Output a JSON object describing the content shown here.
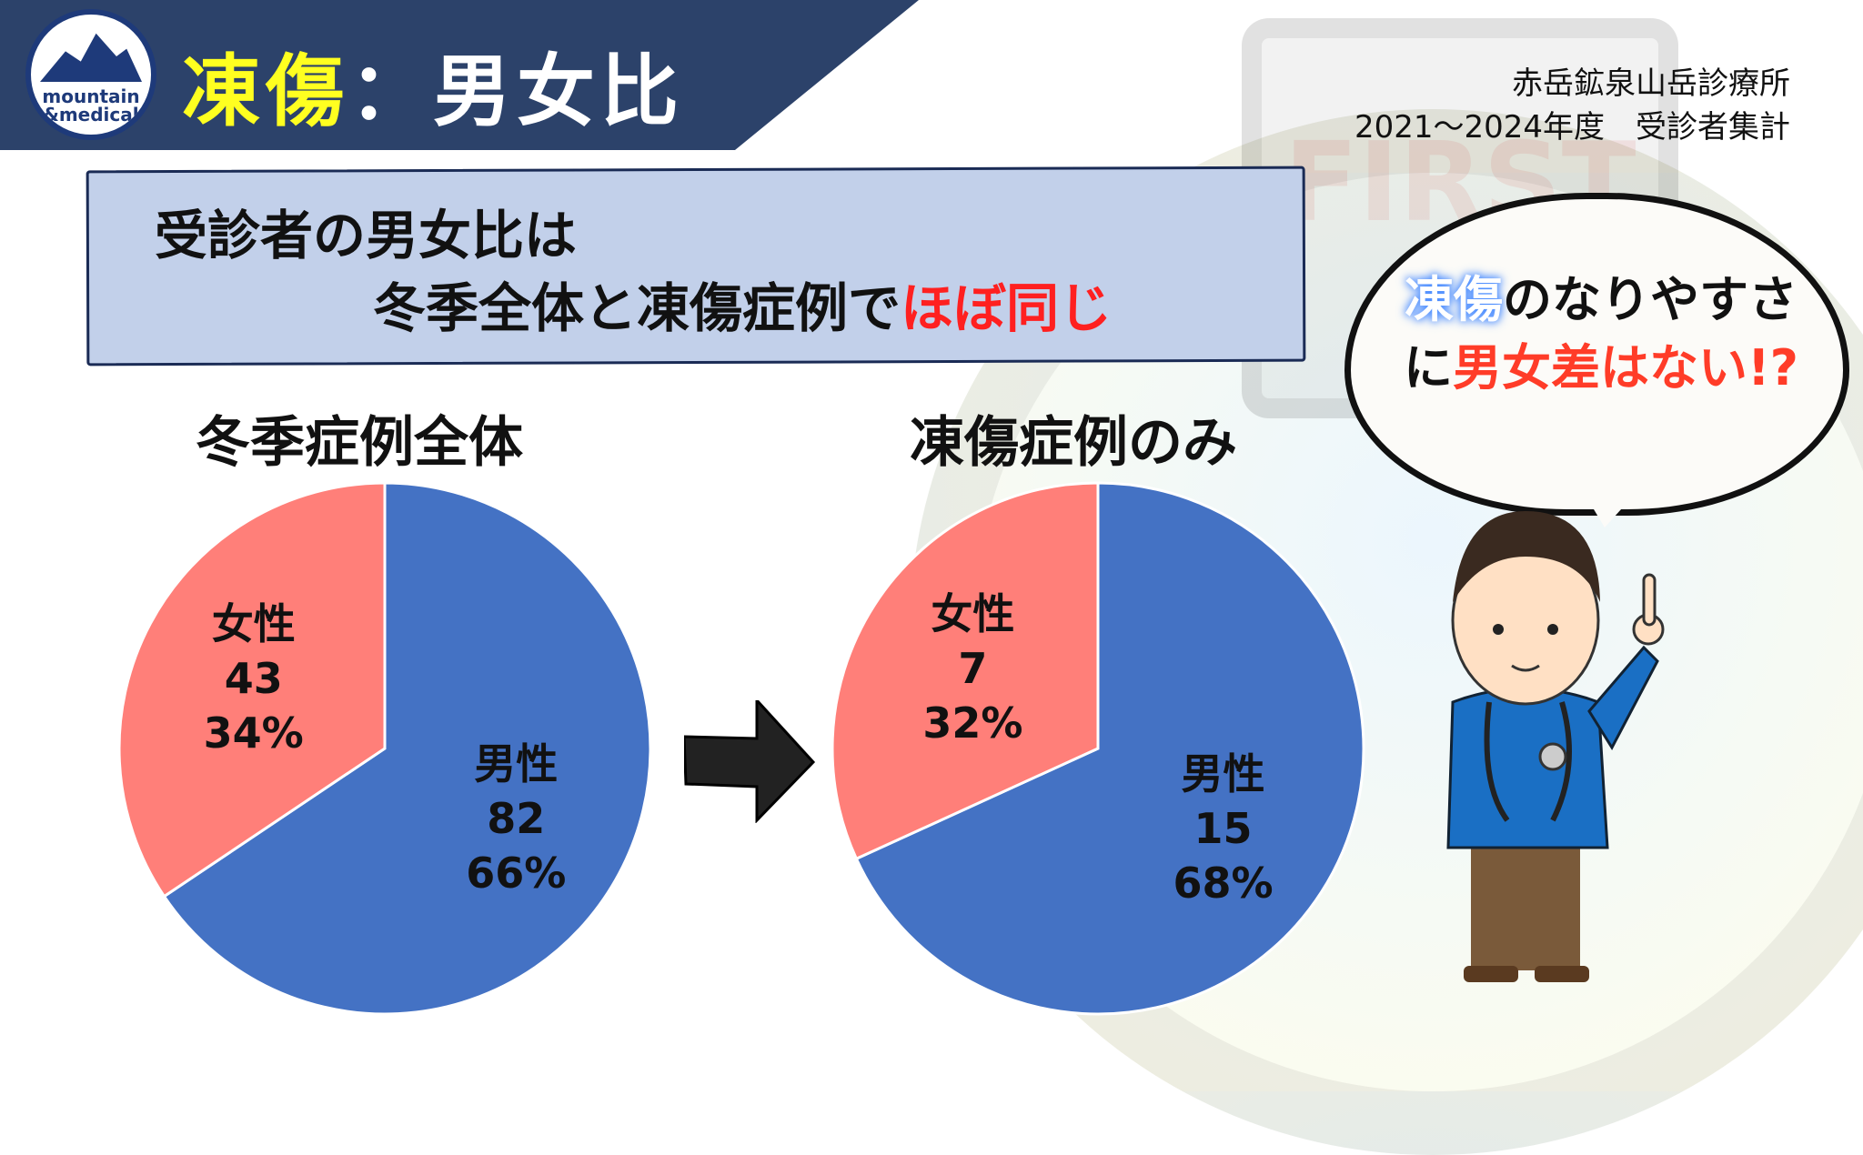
{
  "header": {
    "logo_text": [
      "mountain",
      "&medical"
    ],
    "title_highlight": "凍傷",
    "title_rest": "：男女比"
  },
  "info": {
    "line1": "赤岳鉱泉山岳診療所",
    "line2": "2021～2024年度　受診者集計"
  },
  "watermark": "FIRST",
  "summary": {
    "line1": "受診者の男女比は",
    "line2_prefix": "冬季全体と凍傷症例で",
    "line2_emphasis": "ほぼ同じ"
  },
  "bubble": {
    "highlight": "凍傷",
    "line1_rest": "のなりやすさ",
    "line2_prefix": "に",
    "line2_emphasis": "男女差はない!?"
  },
  "colors": {
    "male": "#4472C4",
    "female": "#FF7F79",
    "header": "#2C426A",
    "title_yellow": "#FFFF20",
    "emphasis_red": "#FF2020"
  },
  "chart_data": [
    {
      "type": "pie",
      "title": "冬季症例全体",
      "slices": [
        {
          "label": "男性",
          "value": 82,
          "percent": "66%",
          "color": "#4472C4"
        },
        {
          "label": "女性",
          "value": 43,
          "percent": "34%",
          "color": "#FF7F79"
        }
      ]
    },
    {
      "type": "pie",
      "title": "凍傷症例のみ",
      "slices": [
        {
          "label": "男性",
          "value": 15,
          "percent": "68%",
          "color": "#4472C4"
        },
        {
          "label": "女性",
          "value": 7,
          "percent": "32%",
          "color": "#FF7F79"
        }
      ]
    }
  ]
}
